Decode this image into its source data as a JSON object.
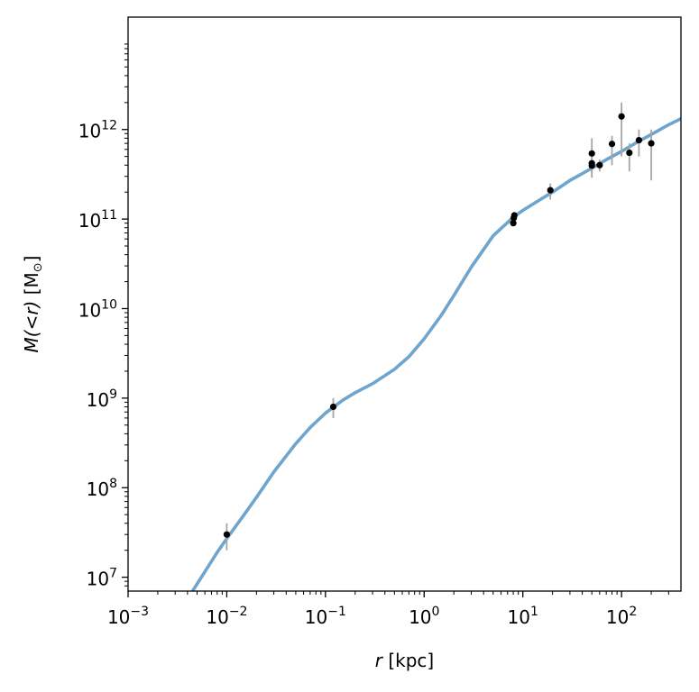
{
  "chart_data": {
    "type": "scatter",
    "title": "",
    "xlabel": {
      "var": "r",
      "unit": " [kpc]"
    },
    "ylabel": {
      "var1": "M",
      "var2": "(<r)",
      "unit_open": " [M",
      "unit_sub": "⊙",
      "unit_close": "]"
    },
    "xscale": "log",
    "yscale": "log",
    "xlim": [
      0.001,
      400
    ],
    "ylim": [
      7000000,
      18000000000000
    ],
    "grid": false,
    "x_ticks": [
      {
        "value": 0.001,
        "base": "10",
        "exp": "−3"
      },
      {
        "value": 0.01,
        "base": "10",
        "exp": "−2"
      },
      {
        "value": 0.1,
        "base": "10",
        "exp": "−1"
      },
      {
        "value": 1,
        "base": "10",
        "exp": "0"
      },
      {
        "value": 10,
        "base": "10",
        "exp": "1"
      },
      {
        "value": 100,
        "base": "10",
        "exp": "2"
      }
    ],
    "y_ticks": [
      {
        "value": 10000000,
        "base": "10",
        "exp": "7"
      },
      {
        "value": 100000000,
        "base": "10",
        "exp": "8"
      },
      {
        "value": 1000000000,
        "base": "10",
        "exp": "9"
      },
      {
        "value": 10000000000,
        "base": "10",
        "exp": "10"
      },
      {
        "value": 100000000000,
        "base": "10",
        "exp": "11"
      },
      {
        "value": 1000000000000,
        "base": "10",
        "exp": "12"
      }
    ],
    "series": [
      {
        "type": "line",
        "color": "#6ea5cf",
        "points": [
          [
            0.0045,
            7000000
          ],
          [
            0.006,
            11500000
          ],
          [
            0.008,
            19000000
          ],
          [
            0.01,
            27000000
          ],
          [
            0.015,
            50000000
          ],
          [
            0.02,
            78000000
          ],
          [
            0.03,
            150000000
          ],
          [
            0.05,
            310000000
          ],
          [
            0.07,
            470000000
          ],
          [
            0.1,
            680000000
          ],
          [
            0.15,
            950000000
          ],
          [
            0.2,
            1150000000
          ],
          [
            0.3,
            1450000000
          ],
          [
            0.5,
            2100000000
          ],
          [
            0.7,
            2900000000
          ],
          [
            1,
            4600000000
          ],
          [
            1.5,
            8500000000
          ],
          [
            2,
            14000000000
          ],
          [
            3,
            29000000000
          ],
          [
            5,
            65000000000
          ],
          [
            8,
            105000000000
          ],
          [
            10,
            125000000000
          ],
          [
            15,
            165000000000
          ],
          [
            20,
            200000000000
          ],
          [
            30,
            270000000000
          ],
          [
            50,
            370000000000
          ],
          [
            70,
            460000000000
          ],
          [
            100,
            570000000000
          ],
          [
            150,
            740000000000
          ],
          [
            200,
            880000000000
          ],
          [
            300,
            1130000000000
          ],
          [
            400,
            1320000000000
          ]
        ]
      },
      {
        "type": "scatter",
        "color": "#000000",
        "errorbar_color": "#a6a6a6",
        "points": [
          {
            "x": 0.01,
            "y": 30000000,
            "ylo": 20000000,
            "yhi": 40000000
          },
          {
            "x": 0.12,
            "y": 800000000,
            "ylo": 600000000,
            "yhi": 1000000000
          },
          {
            "x": 8.0,
            "y": 90000000000,
            "ylo": 86000000000,
            "yhi": 94000000000
          },
          {
            "x": 8.1,
            "y": 103000000000,
            "ylo": 98000000000,
            "yhi": 108000000000
          },
          {
            "x": 8.2,
            "y": 110000000000,
            "ylo": 105000000000,
            "yhi": 115000000000
          },
          {
            "x": 19,
            "y": 210000000000,
            "ylo": 165000000000,
            "yhi": 250000000000
          },
          {
            "x": 50,
            "y": 540000000000,
            "ylo": 400000000000,
            "yhi": 800000000000
          },
          {
            "x": 50,
            "y": 420000000000,
            "ylo": 330000000000,
            "yhi": 500000000000
          },
          {
            "x": 50,
            "y": 395000000000,
            "ylo": 290000000000,
            "yhi": 480000000000
          },
          {
            "x": 60,
            "y": 400000000000,
            "ylo": 340000000000,
            "yhi": 460000000000
          },
          {
            "x": 80,
            "y": 690000000000,
            "ylo": 400000000000,
            "yhi": 850000000000
          },
          {
            "x": 100,
            "y": 1400000000000,
            "ylo": 500000000000,
            "yhi": 2000000000000
          },
          {
            "x": 120,
            "y": 550000000000,
            "ylo": 340000000000,
            "yhi": 700000000000
          },
          {
            "x": 150,
            "y": 760000000000,
            "ylo": 500000000000,
            "yhi": 1000000000000
          },
          {
            "x": 200,
            "y": 700000000000,
            "ylo": 270000000000,
            "yhi": 1000000000000
          }
        ]
      }
    ]
  }
}
